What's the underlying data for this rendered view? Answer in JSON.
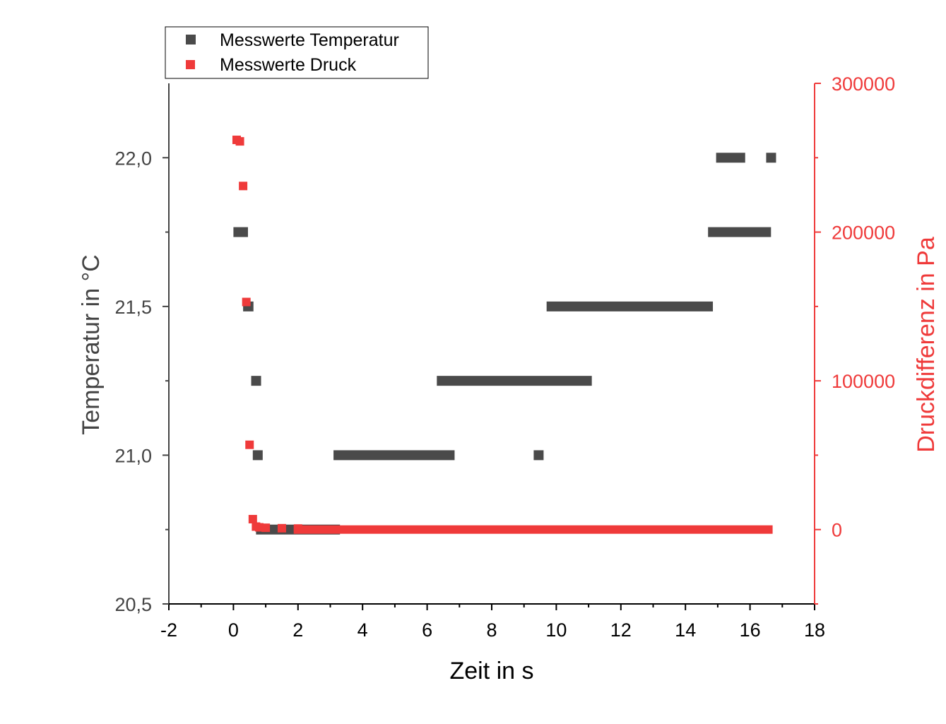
{
  "chart_data": {
    "type": "scatter",
    "xlabel": "Zeit in s",
    "ylabel_left": "Temperatur in °C",
    "ylabel_right": "Druckdifferenz in Pa",
    "xlim": [
      -2,
      18
    ],
    "ylim_left": [
      20.5,
      22.25
    ],
    "ylim_right": [
      -50000,
      300000
    ],
    "x_ticks": [
      -2,
      0,
      2,
      4,
      6,
      8,
      10,
      12,
      14,
      16,
      18
    ],
    "y_left_ticks": [
      20.5,
      21.0,
      21.5,
      22.0
    ],
    "y_left_tick_labels": [
      "20,5",
      "21,0",
      "21,5",
      "22,0"
    ],
    "y_right_ticks": [
      0,
      100000,
      200000,
      300000
    ],
    "y_right_tick_labels": [
      "0",
      "100000",
      "200000",
      "300000"
    ],
    "legend_position": "top-left",
    "colors": {
      "temperature": "#4a4a4a",
      "pressure": "#ef3a3a",
      "axis_left": "#444444",
      "axis_right": "#ef3a3a"
    },
    "series": [
      {
        "name": "Messwerte Temperatur",
        "axis": "left",
        "runs": [
          {
            "y": 21.75,
            "x_start": 0.0,
            "x_end": 0.45
          },
          {
            "y": 21.5,
            "x_start": 0.3,
            "x_end": 0.62
          },
          {
            "y": 21.25,
            "x_start": 0.55,
            "x_end": 0.72
          },
          {
            "y": 21.0,
            "x_start": 0.6,
            "x_end": 0.85
          },
          {
            "y": 20.75,
            "x_start": 0.7,
            "x_end": 3.3
          },
          {
            "y": 21.0,
            "x_start": 3.1,
            "x_end": 6.85
          },
          {
            "y": 21.25,
            "x_start": 6.3,
            "x_end": 11.1
          },
          {
            "y": 21.0,
            "x_start": 9.3,
            "x_end": 9.55
          },
          {
            "y": 21.5,
            "x_start": 9.7,
            "x_end": 14.85
          },
          {
            "y": 21.75,
            "x_start": 14.7,
            "x_end": 16.65
          },
          {
            "y": 22.0,
            "x_start": 14.95,
            "x_end": 15.85
          },
          {
            "y": 22.0,
            "x_start": 16.5,
            "x_end": 16.75
          }
        ]
      },
      {
        "name": "Messwerte Druck",
        "axis": "right",
        "points": [
          [
            0.1,
            262000
          ],
          [
            0.2,
            261000
          ],
          [
            0.3,
            231000
          ],
          [
            0.4,
            153000
          ],
          [
            0.5,
            57000
          ],
          [
            0.6,
            7000
          ],
          [
            0.7,
            2000
          ],
          [
            0.8,
            1500
          ],
          [
            1.0,
            1200
          ],
          [
            1.5,
            900
          ],
          [
            2.0,
            700
          ]
        ],
        "baseline": {
          "y": 0,
          "x_start": 2.0,
          "x_end": 16.7
        }
      }
    ]
  }
}
